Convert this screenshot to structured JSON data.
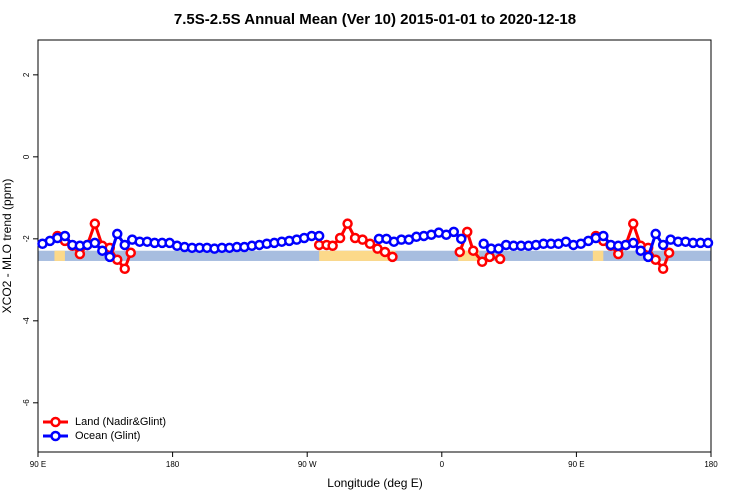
{
  "chart_data": {
    "type": "line",
    "title": "7.5S-2.5S Annual Mean (Ver 10)   2015-01-01 to 2020-12-18",
    "x_label": "Longitude (deg E)",
    "y_label": "XCO2 - MLO trend (ppm)",
    "xlim": [
      90,
      540
    ],
    "ylim": [
      -7.2,
      2.85
    ],
    "xticks": [
      {
        "value": 90,
        "label": "90 E"
      },
      180,
      {
        "value": 270,
        "label": "90 W"
      },
      {
        "value": 360,
        "label": "0"
      },
      {
        "value": 450,
        "label": "90 E"
      },
      {
        "value": 540,
        "label": "180"
      }
    ],
    "yticks": [
      2,
      0,
      -2,
      -4,
      -6
    ],
    "legend": "bottom-left",
    "bands": [
      {
        "color": "#a7bddf",
        "ranges": [
          [
            90,
            540
          ]
        ],
        "ylim": [
          -2.54,
          -2.29
        ]
      },
      {
        "color": "#fcd98a",
        "ranges": [
          [
            101,
            108
          ],
          [
            278,
            329
          ],
          [
            371,
            385
          ],
          [
            461,
            468
          ]
        ],
        "ylim": [
          -2.54,
          -2.29
        ]
      }
    ],
    "series": [
      {
        "name": "Land (Nadir&Glint)",
        "color": "#ff0000",
        "x": [
          103,
          108,
          113,
          118,
          123,
          128,
          133,
          138,
          143,
          148,
          152,
          null,
          278,
          283,
          287,
          292,
          297,
          302,
          307,
          312,
          317,
          322,
          327,
          null,
          372,
          377,
          381,
          387,
          392,
          399,
          null,
          463,
          468,
          473,
          478,
          483,
          488,
          493,
          498,
          503,
          508,
          512
        ],
        "values": [
          -1.93,
          -2.05,
          -2.17,
          -2.37,
          -2.15,
          -1.63,
          -2.17,
          -2.22,
          -2.51,
          -2.73,
          -2.34,
          null,
          -2.15,
          -2.15,
          -2.17,
          -1.98,
          -1.63,
          -1.98,
          -2.02,
          -2.12,
          -2.24,
          -2.32,
          -2.44,
          null,
          -2.32,
          -1.83,
          -2.29,
          -2.56,
          -2.44,
          -2.49,
          null,
          -1.93,
          -2.05,
          -2.17,
          -2.37,
          -2.15,
          -1.63,
          -2.17,
          -2.22,
          -2.51,
          -2.73,
          -2.34
        ]
      },
      {
        "name": "Ocean (Glint)",
        "color": "#0000ff",
        "x": [
          93,
          98,
          103,
          108,
          113,
          118,
          123,
          128,
          133,
          138,
          143,
          148,
          153,
          158,
          163,
          168,
          173,
          178,
          183,
          188,
          193,
          198,
          203,
          208,
          213,
          218,
          223,
          228,
          233,
          238,
          243,
          248,
          253,
          258,
          263,
          268,
          273,
          278,
          null,
          318,
          323,
          328,
          333,
          338,
          343,
          348,
          353,
          358,
          363,
          368,
          373,
          null,
          388,
          393,
          398,
          403,
          408,
          413,
          418,
          423,
          428,
          433,
          438,
          443,
          448,
          453,
          458,
          463,
          468,
          473,
          478,
          483,
          488,
          493,
          498,
          503,
          508,
          513,
          518,
          523,
          528,
          533,
          538
        ],
        "values": [
          -2.12,
          -2.05,
          -1.98,
          -1.93,
          -2.15,
          -2.17,
          -2.15,
          -2.1,
          -2.29,
          -2.44,
          -1.88,
          -2.15,
          -2.02,
          -2.07,
          -2.07,
          -2.1,
          -2.1,
          -2.1,
          -2.17,
          -2.2,
          -2.22,
          -2.22,
          -2.22,
          -2.24,
          -2.22,
          -2.22,
          -2.2,
          -2.2,
          -2.17,
          -2.15,
          -2.12,
          -2.1,
          -2.07,
          -2.05,
          -2.02,
          -1.98,
          -1.93,
          -1.93,
          null,
          -2.0,
          -2.0,
          -2.07,
          -2.02,
          -2.02,
          -1.95,
          -1.93,
          -1.9,
          -1.85,
          -1.9,
          -1.83,
          -2.0,
          null,
          -2.12,
          -2.24,
          -2.24,
          -2.15,
          -2.17,
          -2.17,
          -2.17,
          -2.15,
          -2.12,
          -2.12,
          -2.12,
          -2.07,
          -2.15,
          -2.12,
          -2.05,
          -1.98,
          -1.93,
          -2.15,
          -2.17,
          -2.15,
          -2.1,
          -2.29,
          -2.44,
          -1.88,
          -2.15,
          -2.02,
          -2.07,
          -2.07,
          -2.1,
          -2.1,
          -2.1
        ]
      }
    ]
  }
}
